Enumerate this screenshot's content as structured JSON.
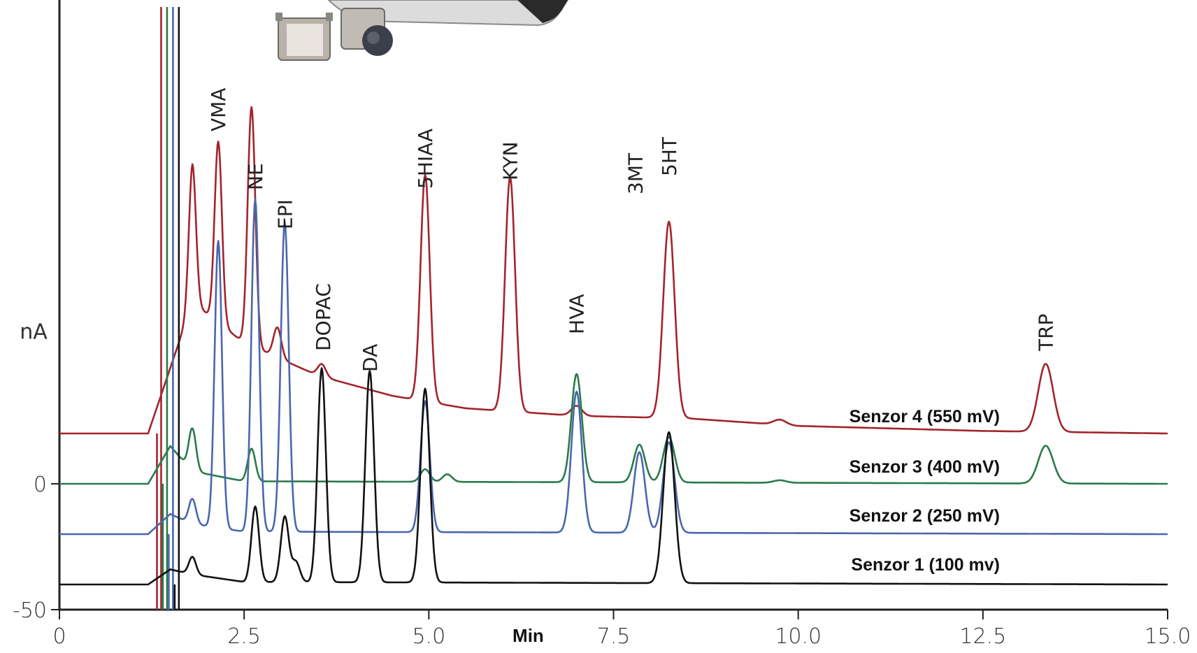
{
  "chart_data": {
    "type": "line",
    "xlabel": "Min",
    "ylabel": "nA",
    "xlim": [
      0,
      15.0
    ],
    "ylim": [
      -50,
      190
    ],
    "x_ticks": [
      "0",
      "2.5",
      "5.0",
      "7.5",
      "10.0",
      "12.5",
      "15.0"
    ],
    "y_ticks": [
      "0",
      "-50"
    ],
    "grid": false,
    "legend": "inline labels to the right of each trace",
    "peak_labels": [
      {
        "label": "VMA",
        "x": 2.15
      },
      {
        "label": "NE",
        "x": 2.65
      },
      {
        "label": "EPI",
        "x": 3.05
      },
      {
        "label": "DOPAC",
        "x": 3.55
      },
      {
        "label": "DA",
        "x": 4.2
      },
      {
        "label": "5HIAA",
        "x": 4.95
      },
      {
        "label": "KYN",
        "x": 6.1
      },
      {
        "label": "HVA",
        "x": 7.0
      },
      {
        "label": "3MT",
        "x": 7.85
      },
      {
        "label": "5HT",
        "x": 8.25
      },
      {
        "label": "TRP",
        "x": 13.35
      }
    ],
    "series": [
      {
        "name": "Senzor 4 (550 mV)",
        "color": "#a3242c",
        "baseline": [
          [
            0,
            20
          ],
          [
            1.2,
            20
          ],
          [
            1.8,
            72
          ],
          [
            2.5,
            56
          ],
          [
            3.5,
            43
          ],
          [
            4.5,
            35
          ],
          [
            5.5,
            30
          ],
          [
            7.0,
            27
          ],
          [
            8.5,
            26
          ],
          [
            10.0,
            23
          ],
          [
            12.5,
            21
          ],
          [
            15.0,
            20
          ]
        ],
        "peaks": [
          [
            1.8,
            55
          ],
          [
            2.15,
            72
          ],
          [
            2.6,
            95
          ],
          [
            2.95,
            12
          ],
          [
            3.55,
            5
          ],
          [
            4.95,
            90
          ],
          [
            6.1,
            93
          ],
          [
            7.0,
            4
          ],
          [
            8.25,
            78
          ],
          [
            9.75,
            2
          ],
          [
            13.35,
            27
          ]
        ]
      },
      {
        "name": "Senzor 3 (400 mV)",
        "color": "#2a7a4c",
        "baseline": [
          [
            0,
            0
          ],
          [
            1.2,
            0
          ],
          [
            1.5,
            15
          ],
          [
            1.8,
            5
          ],
          [
            2.5,
            1
          ],
          [
            15.0,
            0
          ]
        ],
        "peaks": [
          [
            1.8,
            17
          ],
          [
            2.15,
            0
          ],
          [
            2.6,
            13
          ],
          [
            4.95,
            5
          ],
          [
            5.25,
            3
          ],
          [
            7.0,
            43
          ],
          [
            7.85,
            15
          ],
          [
            8.25,
            18
          ],
          [
            9.75,
            1
          ],
          [
            13.35,
            15
          ]
        ]
      },
      {
        "name": "Senzor 2 (250 mV)",
        "color": "#4a67ad",
        "baseline": [
          [
            0,
            -20
          ],
          [
            1.2,
            -20
          ],
          [
            1.5,
            -12
          ],
          [
            1.8,
            -16
          ],
          [
            2.5,
            -19
          ],
          [
            15.0,
            -20
          ]
        ],
        "peaks": [
          [
            1.8,
            10
          ],
          [
            2.15,
            114
          ],
          [
            2.65,
            132
          ],
          [
            3.05,
            123
          ],
          [
            4.95,
            52
          ],
          [
            7.0,
            56
          ],
          [
            7.85,
            32
          ],
          [
            8.25,
            36
          ]
        ]
      },
      {
        "name": "Senzor 1 (100 mv)",
        "color": "#111111",
        "baseline": [
          [
            0,
            -40
          ],
          [
            1.2,
            -40
          ],
          [
            1.5,
            -34
          ],
          [
            1.8,
            -36
          ],
          [
            2.5,
            -39
          ],
          [
            15.0,
            -40
          ]
        ],
        "peaks": [
          [
            1.8,
            7
          ],
          [
            2.65,
            30
          ],
          [
            3.05,
            26
          ],
          [
            3.2,
            8
          ],
          [
            3.55,
            85
          ],
          [
            4.2,
            84
          ],
          [
            4.95,
            77
          ],
          [
            8.25,
            60
          ]
        ]
      }
    ]
  }
}
